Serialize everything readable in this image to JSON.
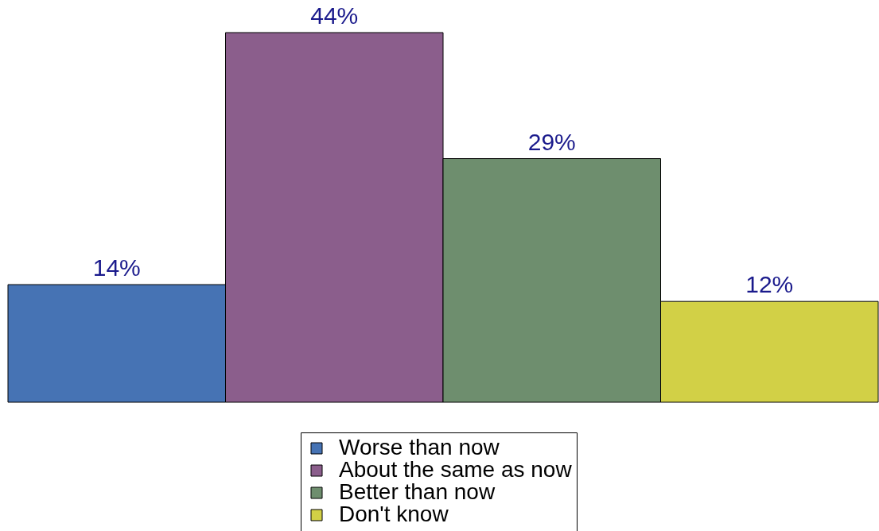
{
  "chart_data": {
    "type": "bar",
    "categories": [
      null
    ],
    "series": [
      {
        "name": "Worse than now",
        "color": "#4673b4",
        "values": [
          14
        ],
        "value_labels": [
          "14%"
        ]
      },
      {
        "name": "About the same as now",
        "color": "#8b5e8c",
        "values": [
          44
        ],
        "value_labels": [
          "44%"
        ]
      },
      {
        "name": "Better than now",
        "color": "#6e8e6e",
        "values": [
          29
        ],
        "value_labels": [
          "29%"
        ]
      },
      {
        "name": "Don't know",
        "color": "#d2d046",
        "values": [
          12
        ],
        "value_labels": [
          "12%"
        ]
      }
    ],
    "legend": "bottom"
  }
}
